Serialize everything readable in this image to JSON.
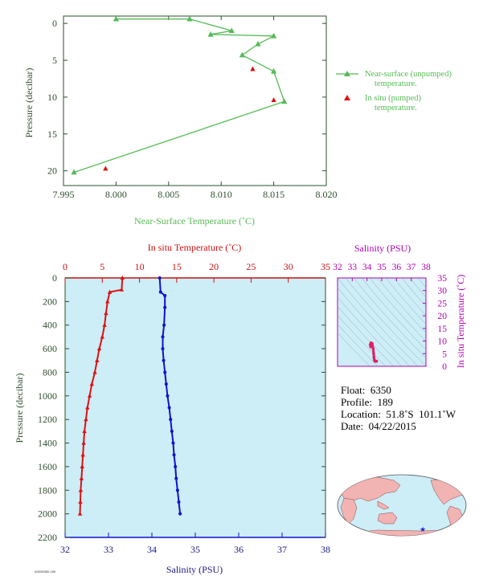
{
  "chart_data": [
    {
      "type": "line",
      "xlabel": "Near-Surface Temperature (˚C)",
      "ylabel": "Pressure (decibar)",
      "xlim": [
        7.995,
        8.02
      ],
      "ylim": [
        22,
        -1
      ],
      "xticks": [
        "7.995",
        "8.000",
        "8.005",
        "8.010",
        "8.015",
        "8.020"
      ],
      "yticks": [
        "0",
        "5",
        "10",
        "15",
        "20"
      ],
      "legend_position": "right",
      "series": [
        {
          "name": "Near-surface (unpumped) temperature.",
          "color": "#55bb55",
          "marker": "triangle",
          "points": [
            [
              8.0,
              -0.6
            ],
            [
              8.007,
              -0.6
            ],
            [
              8.011,
              1.0
            ],
            [
              8.009,
              1.5
            ],
            [
              8.015,
              1.7
            ],
            [
              8.0135,
              2.8
            ],
            [
              8.012,
              4.3
            ],
            [
              8.015,
              6.5
            ],
            [
              8.016,
              10.6
            ],
            [
              7.996,
              20.2
            ]
          ]
        },
        {
          "name": "In situ (pumped) temperature.",
          "color": "#dd1111",
          "marker": "triangle",
          "points": [
            [
              8.013,
              6.2
            ],
            [
              8.015,
              10.4
            ],
            [
              7.999,
              19.7
            ]
          ]
        }
      ]
    },
    {
      "type": "scatter",
      "ylabel": "Pressure (decibar)",
      "x_bottom_label": "Salinity (PSU)",
      "x_top_label": "In situ Temperature (˚C)",
      "salinity_lim": [
        32,
        38
      ],
      "temperature_lim": [
        0,
        35
      ],
      "ylim": [
        2200,
        0
      ],
      "salinity_ticks": [
        "32",
        "33",
        "34",
        "35",
        "36",
        "37",
        "38"
      ],
      "temperature_ticks": [
        "0",
        "5",
        "10",
        "15",
        "20",
        "25",
        "30",
        "35"
      ],
      "pressure_ticks": [
        "0",
        "200",
        "400",
        "600",
        "800",
        "1000",
        "1200",
        "1400",
        "1600",
        "1800",
        "2000",
        "2200"
      ],
      "series": [
        {
          "name": "In situ Temperature (˚C)",
          "color": "#dd1111",
          "marker": "triangle",
          "points": [
            [
              7.7,
              0
            ],
            [
              7.6,
              100
            ],
            [
              6.0,
              120
            ],
            [
              5.7,
              200
            ],
            [
              5.5,
              300
            ],
            [
              5.3,
              400
            ],
            [
              5.0,
              500
            ],
            [
              4.6,
              600
            ],
            [
              4.3,
              700
            ],
            [
              4.0,
              800
            ],
            [
              3.6,
              900
            ],
            [
              3.3,
              1000
            ],
            [
              3.0,
              1100
            ],
            [
              2.8,
              1200
            ],
            [
              2.6,
              1300
            ],
            [
              2.5,
              1400
            ],
            [
              2.4,
              1500
            ],
            [
              2.3,
              1600
            ],
            [
              2.2,
              1700
            ],
            [
              2.1,
              1800
            ],
            [
              2.05,
              1900
            ],
            [
              2.0,
              2000
            ]
          ]
        },
        {
          "name": "Salinity (PSU)",
          "color": "#1111cc",
          "marker": "circle",
          "points": [
            [
              34.18,
              0
            ],
            [
              34.2,
              120
            ],
            [
              34.3,
              150
            ],
            [
              34.3,
              250
            ],
            [
              34.28,
              400
            ],
            [
              34.25,
              500
            ],
            [
              34.25,
              600
            ],
            [
              34.27,
              700
            ],
            [
              34.3,
              800
            ],
            [
              34.33,
              900
            ],
            [
              34.36,
              1000
            ],
            [
              34.4,
              1100
            ],
            [
              34.43,
              1200
            ],
            [
              34.46,
              1300
            ],
            [
              34.49,
              1400
            ],
            [
              34.51,
              1500
            ],
            [
              34.54,
              1600
            ],
            [
              34.56,
              1700
            ],
            [
              34.59,
              1800
            ],
            [
              34.62,
              1900
            ],
            [
              34.65,
              2000
            ]
          ]
        }
      ]
    },
    {
      "type": "scatter",
      "title": "Salinity (PSU)",
      "ylabel": "In situ Temperature (˚C)",
      "xlim": [
        32,
        38
      ],
      "ylim": [
        0,
        35
      ],
      "xticks": [
        "32",
        "33",
        "34",
        "35",
        "36",
        "37",
        "38"
      ],
      "yticks": [
        "0",
        "5",
        "10",
        "15",
        "20",
        "25",
        "30",
        "35"
      ],
      "series": [
        {
          "color": "#dd2266",
          "points": [
            [
              34.25,
              7.7
            ],
            [
              34.22,
              8.5
            ],
            [
              34.27,
              9.3
            ],
            [
              34.35,
              9.0
            ],
            [
              34.42,
              7.0
            ],
            [
              34.45,
              5.0
            ],
            [
              34.47,
              3.5
            ],
            [
              34.5,
              2.5
            ],
            [
              34.55,
              2.0
            ],
            [
              34.6,
              2.0
            ],
            [
              34.65,
              2.0
            ]
          ]
        }
      ]
    }
  ],
  "info": {
    "float": "Float:  6350",
    "profile": "Profile:  189",
    "location": "Location:  51.8˚S  101.1˚W",
    "date": "Date:  04/22/2015"
  },
  "footer_code": "A0006350.189"
}
